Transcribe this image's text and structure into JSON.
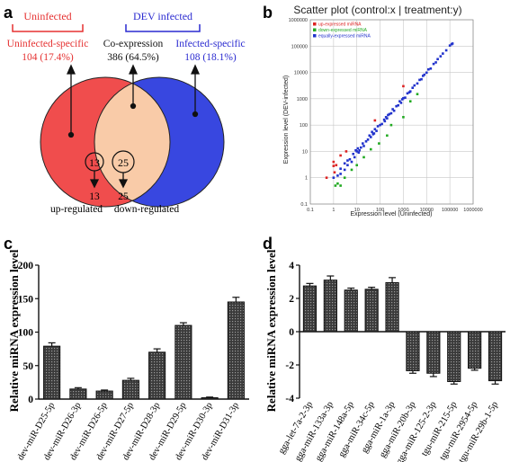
{
  "panel_labels": {
    "a": "a",
    "b": "b",
    "c": "c",
    "d": "d"
  },
  "venn": {
    "uninfected_header": "Uninfected",
    "infected_header": "DEV infected",
    "uninfected_specific": {
      "label": "Uninfected-specific",
      "value": "104 (17.4%)"
    },
    "co_expression": {
      "label": "Co-expression",
      "value": "386 (64.5%)"
    },
    "infected_specific": {
      "label": "Infected-specific",
      "value": "108 (18.1%)"
    },
    "up_count": "13",
    "down_count": "25",
    "up_label": "up-regulated",
    "down_label": "down-regulated",
    "colors": {
      "uninfected": "#ee3333",
      "infected": "#2233dd",
      "overlap": "#f8c8a8",
      "uninfected_text": "#e53030",
      "infected_text": "#2a2ad0"
    }
  },
  "chart_data": [
    {
      "type": "scatter",
      "title": "Scatter plot (control:x | treatment:y)",
      "xlabel": "Expression level (Uninfected)",
      "ylabel": "Expression level (DEV-infected)",
      "log_scale": true,
      "x_ticks": [
        "0.1",
        "1",
        "10",
        "100",
        "1000",
        "10000",
        "100000",
        "1000000"
      ],
      "y_ticks": [
        "0.1",
        "1",
        "10",
        "100",
        "1000",
        "10000",
        "100000",
        "1000000"
      ],
      "grid": true,
      "legend_position": "top-left",
      "series": [
        {
          "name": "up-expressed miRNA",
          "color": "#dd2222",
          "points": [
            [
              0.5,
              1
            ],
            [
              1,
              2.8
            ],
            [
              1.3,
              3
            ],
            [
              1,
              4
            ],
            [
              2,
              7
            ],
            [
              3.5,
              10
            ],
            [
              1.1,
              1.6
            ],
            [
              60,
              150
            ],
            [
              1000,
              3000
            ]
          ]
        },
        {
          "name": "down-expressed miRNA",
          "color": "#22aa22",
          "points": [
            [
              1.2,
              0.5
            ],
            [
              1.5,
              0.6
            ],
            [
              2,
              0.5
            ],
            [
              3,
              1
            ],
            [
              6,
              2
            ],
            [
              10,
              3
            ],
            [
              40,
              12
            ],
            [
              90,
              20
            ],
            [
              300,
              100
            ],
            [
              1000,
              200
            ],
            [
              2000,
              800
            ],
            [
              4000,
              1500
            ],
            [
              200,
              40
            ],
            [
              20,
              6
            ]
          ]
        },
        {
          "name": "equally-expressed miRNA",
          "color": "#2233cc",
          "points": [
            [
              1,
              1
            ],
            [
              1.5,
              1.2
            ],
            [
              2,
              1.4
            ],
            [
              2,
              2.2
            ],
            [
              3,
              2
            ],
            [
              3,
              3.5
            ],
            [
              4,
              3
            ],
            [
              4,
              4.5
            ],
            [
              5,
              5
            ],
            [
              6,
              4
            ],
            [
              7,
              8
            ],
            [
              8,
              6
            ],
            [
              10,
              10
            ],
            [
              12,
              9
            ],
            [
              15,
              14
            ],
            [
              18,
              20
            ],
            [
              20,
              16
            ],
            [
              25,
              24
            ],
            [
              30,
              28
            ],
            [
              35,
              40
            ],
            [
              40,
              35
            ],
            [
              50,
              45
            ],
            [
              60,
              70
            ],
            [
              70,
              60
            ],
            [
              80,
              90
            ],
            [
              100,
              100
            ],
            [
              120,
              110
            ],
            [
              150,
              160
            ],
            [
              180,
              200
            ],
            [
              200,
              180
            ],
            [
              250,
              260
            ],
            [
              300,
              280
            ],
            [
              350,
              400
            ],
            [
              400,
              350
            ],
            [
              500,
              520
            ],
            [
              600,
              560
            ],
            [
              700,
              800
            ],
            [
              800,
              700
            ],
            [
              1000,
              1050
            ],
            [
              1200,
              1100
            ],
            [
              1500,
              1600
            ],
            [
              2000,
              1900
            ],
            [
              2500,
              2600
            ],
            [
              3000,
              3200
            ],
            [
              4000,
              3800
            ],
            [
              5000,
              5200
            ],
            [
              6000,
              5500
            ],
            [
              8000,
              8200
            ],
            [
              10000,
              9800
            ],
            [
              12000,
              13000
            ],
            [
              15000,
              14000
            ],
            [
              20000,
              21000
            ],
            [
              25000,
              24000
            ],
            [
              30000,
              32000
            ],
            [
              40000,
              41000
            ],
            [
              50000,
              52000
            ],
            [
              70000,
              69000
            ],
            [
              100000,
              105000
            ],
            [
              120000,
              118000
            ],
            [
              130000,
              125000
            ],
            [
              9,
              11
            ],
            [
              11,
              13
            ],
            [
              13,
              11
            ],
            [
              45,
              55
            ],
            [
              55,
              48
            ],
            [
              160,
              140
            ],
            [
              220,
              240
            ],
            [
              900,
              950
            ],
            [
              1800,
              1750
            ],
            [
              7000,
              7400
            ]
          ]
        }
      ]
    },
    {
      "type": "bar",
      "ylabel": "Relative miRNA expression level",
      "ylim": [
        0,
        200
      ],
      "y_ticks": [
        "0",
        "50",
        "100",
        "150",
        "200"
      ],
      "categories": [
        "dev-miR-D25-5p",
        "dev-miR-D26-3p",
        "dev-miR-D26-5p",
        "dev-miR-D27-5p",
        "dev-miR-D28-3p",
        "dev-miR-D29-5p",
        "dev-miR-D30-3p",
        "dev-miR-D31-3p"
      ],
      "values": [
        79,
        15,
        12,
        28,
        70,
        110,
        2,
        145
      ],
      "errors": [
        5,
        2,
        1.5,
        3,
        5,
        4,
        1,
        7
      ]
    },
    {
      "type": "bar",
      "ylabel": "Relative miRNA expression level",
      "ylim": [
        -4,
        4
      ],
      "y_ticks": [
        "-4",
        "-2",
        "0",
        "2",
        "4"
      ],
      "categories": [
        "gga-let-7a-2-3p",
        "gga-miR-133a-3p",
        "gga-miR-148a-5p",
        "gga-miR-34c-5p",
        "gga-miR-1a-3p",
        "gga-miR-20b-3p",
        "gga-miR-125-2-3p",
        "tgu-miR-215-5p",
        "tgu-miR-2954-5p",
        "tgu-miR-29b-1-5p"
      ],
      "values": [
        2.75,
        3.1,
        2.5,
        2.55,
        2.95,
        -2.35,
        -2.5,
        -3.0,
        -2.2,
        -2.95
      ],
      "errors": [
        0.15,
        0.25,
        0.12,
        0.12,
        0.3,
        0.15,
        0.2,
        0.15,
        0.12,
        0.2
      ]
    }
  ]
}
